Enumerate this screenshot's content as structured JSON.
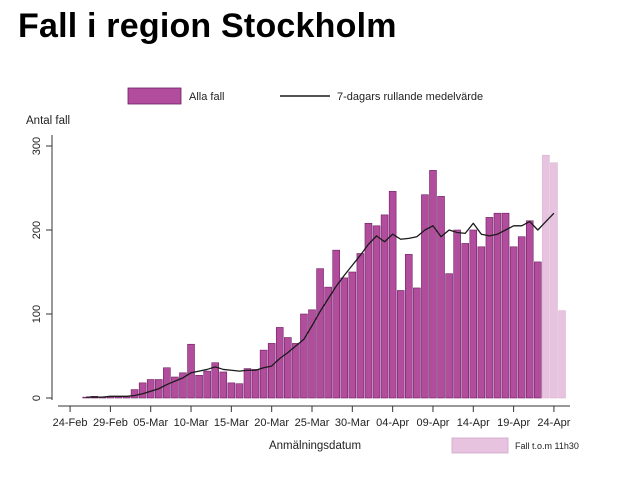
{
  "slide": {
    "title": "Fall i region Stockholm"
  },
  "colors": {
    "bar_fill": "#b24d9d",
    "bar_stroke": "#6e1f62",
    "partial_bar_fill": "#e7c3df",
    "line": "#1a1a1a",
    "axis": "#333333"
  },
  "chart_data": {
    "type": "bar",
    "x_type": "date",
    "ylabel": "Antal fall",
    "xlabel": "Anmälningsdatum",
    "ylim": [
      0,
      300
    ],
    "yticks": [
      0,
      100,
      200,
      300
    ],
    "xlim": [
      "2020-02-23",
      "2020-04-25"
    ],
    "xtick_labels": [
      "24-Feb",
      "29-Feb",
      "05-Mar",
      "10-Mar",
      "15-Mar",
      "20-Mar",
      "25-Mar",
      "30-Mar",
      "04-Apr",
      "09-Apr",
      "14-Apr",
      "19-Apr",
      "24-Apr"
    ],
    "xtick_dates": [
      "2020-02-24",
      "2020-02-29",
      "2020-03-05",
      "2020-03-10",
      "2020-03-15",
      "2020-03-20",
      "2020-03-25",
      "2020-03-30",
      "2020-04-04",
      "2020-04-09",
      "2020-04-14",
      "2020-04-19",
      "2020-04-24"
    ],
    "legend": {
      "position": "top",
      "bar_label": "Alla fall",
      "line_label": "7-dagars rullande medelvärde"
    },
    "grid": false,
    "series": [
      {
        "name": "Alla fall",
        "type": "bar",
        "dates": [
          "2020-02-26",
          "2020-02-27",
          "2020-02-28",
          "2020-02-29",
          "2020-03-01",
          "2020-03-02",
          "2020-03-03",
          "2020-03-04",
          "2020-03-05",
          "2020-03-06",
          "2020-03-07",
          "2020-03-08",
          "2020-03-09",
          "2020-03-10",
          "2020-03-11",
          "2020-03-12",
          "2020-03-13",
          "2020-03-14",
          "2020-03-15",
          "2020-03-16",
          "2020-03-17",
          "2020-03-18",
          "2020-03-19",
          "2020-03-20",
          "2020-03-21",
          "2020-03-22",
          "2020-03-23",
          "2020-03-24",
          "2020-03-25",
          "2020-03-26",
          "2020-03-27",
          "2020-03-28",
          "2020-03-29",
          "2020-03-30",
          "2020-03-31",
          "2020-04-01",
          "2020-04-02",
          "2020-04-03",
          "2020-04-04",
          "2020-04-05",
          "2020-04-06",
          "2020-04-07",
          "2020-04-08",
          "2020-04-09",
          "2020-04-10",
          "2020-04-11",
          "2020-04-12",
          "2020-04-13",
          "2020-04-14",
          "2020-04-15",
          "2020-04-16",
          "2020-04-17",
          "2020-04-18",
          "2020-04-19",
          "2020-04-20",
          "2020-04-21",
          "2020-04-22"
        ],
        "values": [
          1,
          2,
          1,
          2,
          2,
          2,
          10,
          18,
          22,
          22,
          36,
          25,
          30,
          64,
          27,
          32,
          42,
          31,
          18,
          17,
          35,
          34,
          57,
          65,
          84,
          72,
          65,
          100,
          105,
          154,
          132,
          176,
          143,
          150,
          172,
          208,
          205,
          218,
          246,
          128,
          171,
          131,
          242,
          271,
          240,
          148,
          200,
          184,
          200,
          180,
          215,
          220,
          220,
          180,
          192,
          211,
          162
        ]
      },
      {
        "name": "Fall t.o.m 11h30",
        "type": "bar",
        "partial": true,
        "dates": [
          "2020-04-23",
          "2020-04-24",
          "2020-04-25"
        ],
        "values": [
          289,
          280,
          104
        ]
      },
      {
        "name": "7-dagars rullande medelvärde",
        "type": "line",
        "dates": [
          "2020-02-26",
          "2020-02-27",
          "2020-02-28",
          "2020-02-29",
          "2020-03-01",
          "2020-03-02",
          "2020-03-03",
          "2020-03-04",
          "2020-03-05",
          "2020-03-06",
          "2020-03-07",
          "2020-03-08",
          "2020-03-09",
          "2020-03-10",
          "2020-03-11",
          "2020-03-12",
          "2020-03-13",
          "2020-03-14",
          "2020-03-15",
          "2020-03-16",
          "2020-03-17",
          "2020-03-18",
          "2020-03-19",
          "2020-03-20",
          "2020-03-21",
          "2020-03-22",
          "2020-03-23",
          "2020-03-24",
          "2020-03-25",
          "2020-03-26",
          "2020-03-27",
          "2020-03-28",
          "2020-03-29",
          "2020-03-30",
          "2020-03-31",
          "2020-04-01",
          "2020-04-02",
          "2020-04-03",
          "2020-04-04",
          "2020-04-05",
          "2020-04-06",
          "2020-04-07",
          "2020-04-08",
          "2020-04-09",
          "2020-04-10",
          "2020-04-11",
          "2020-04-12",
          "2020-04-13",
          "2020-04-14",
          "2020-04-15",
          "2020-04-16",
          "2020-04-17",
          "2020-04-18",
          "2020-04-19",
          "2020-04-20",
          "2020-04-21",
          "2020-04-22",
          "2020-04-23",
          "2020-04-24"
        ],
        "values": [
          1,
          1,
          1,
          2,
          2,
          2,
          3,
          5,
          8,
          11,
          16,
          20,
          24,
          30,
          32,
          34,
          37,
          34,
          33,
          32,
          33,
          33,
          36,
          38,
          47,
          54,
          62,
          70,
          86,
          103,
          118,
          133,
          146,
          158,
          170,
          183,
          193,
          186,
          195,
          189,
          190,
          192,
          200,
          205,
          192,
          200,
          197,
          196,
          208,
          195,
          193,
          195,
          200,
          205,
          205,
          210,
          200,
          210,
          220
        ]
      }
    ],
    "annotation": {
      "label": "Fall t.o.m 11h30",
      "position": "bottom-right"
    }
  }
}
